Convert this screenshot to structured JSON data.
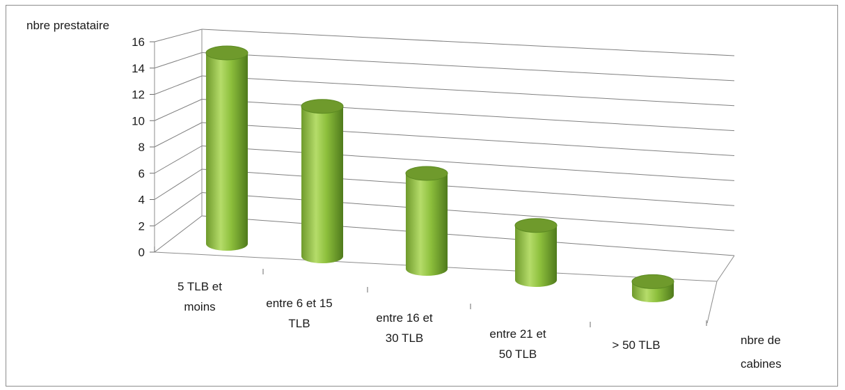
{
  "chart_data": {
    "type": "bar",
    "style": "3d-cylinder",
    "ylabel": "nbre prestataire",
    "xlabel": [
      "nbre de",
      "cabines"
    ],
    "ylim": [
      0,
      16
    ],
    "yticks": [
      0,
      2,
      4,
      6,
      8,
      10,
      12,
      14,
      16
    ],
    "grid": true,
    "categories": [
      [
        "5 TLB et",
        "moins"
      ],
      [
        "entre 6 et 15",
        "TLB"
      ],
      [
        "entre 16 et",
        "30 TLB"
      ],
      [
        "entre 21 et",
        "50 TLB"
      ],
      [
        "> 50 TLB"
      ]
    ],
    "values": [
      14,
      11,
      7,
      4,
      1
    ],
    "colors": {
      "bar_light": "#b5dc6a",
      "bar_mid": "#8dbf3c",
      "bar_dark": "#4f7a1c",
      "bar_top": "#6f9a2c",
      "grid": "#7f7f7f"
    }
  }
}
